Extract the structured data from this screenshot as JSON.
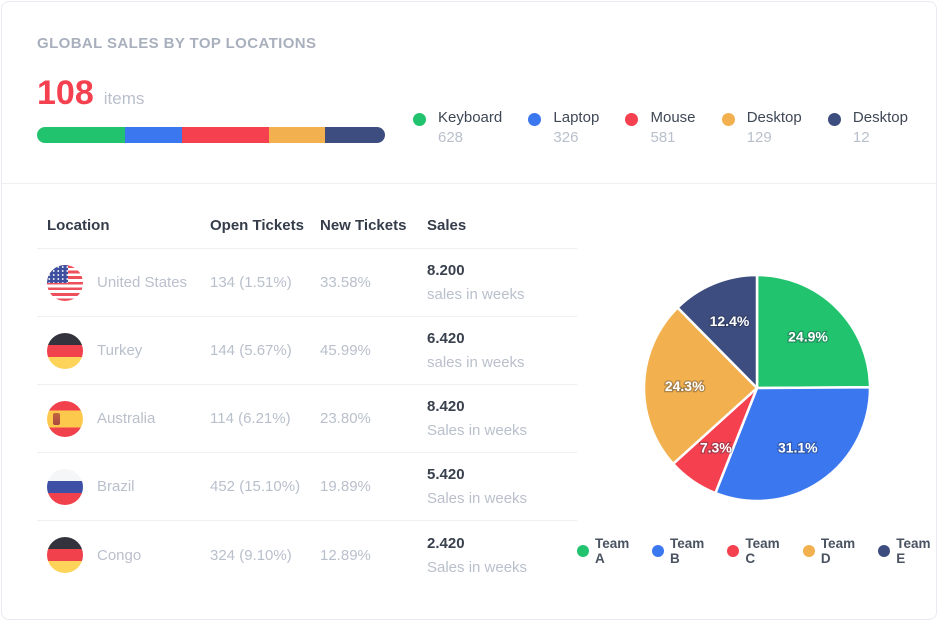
{
  "card": {
    "title": "GLOBAL SALES BY TOP LOCATIONS"
  },
  "summary": {
    "count": "108",
    "count_label": "items",
    "accent_color": "#f5414f"
  },
  "table": {
    "headers": [
      "Location",
      "Open Tickets",
      "New Tickets",
      "Sales"
    ],
    "rows": [
      {
        "location": "United States",
        "flag": "us",
        "open_tickets": "134 (1.51%)",
        "new_tickets": "33.58%",
        "sales": "8.200",
        "sales_sub": "sales in weeks"
      },
      {
        "location": "Turkey",
        "flag": "de",
        "open_tickets": "144 (5.67%)",
        "new_tickets": "45.99%",
        "sales": "6.420",
        "sales_sub": "sales in weeks"
      },
      {
        "location": "Australia",
        "flag": "es",
        "open_tickets": "114 (6.21%)",
        "new_tickets": "23.80%",
        "sales": "8.420",
        "sales_sub": "Sales in weeks"
      },
      {
        "location": "Brazil",
        "flag": "ru",
        "open_tickets": "452 (15.10%)",
        "new_tickets": "19.89%",
        "sales": "5.420",
        "sales_sub": "Sales in weeks"
      },
      {
        "location": "Congo",
        "flag": "de",
        "open_tickets": "324 (9.10%)",
        "new_tickets": "12.89%",
        "sales": "2.420",
        "sales_sub": "Sales in weeks"
      }
    ]
  },
  "chart_data": [
    {
      "type": "pie",
      "labels": [
        "Team A",
        "Team B",
        "Team C",
        "Team D",
        "Team E"
      ],
      "values": [
        24.9,
        31.1,
        7.3,
        24.3,
        12.4
      ],
      "unit": "%",
      "slice_labels": [
        "24.9%",
        "31.1%",
        "7.3%",
        "24.3%",
        "12.4%"
      ],
      "colors": [
        "#22c36f",
        "#3b77ef",
        "#f5414f",
        "#f2b04e",
        "#3e4d7f"
      ],
      "legend_position": "bottom",
      "start_angle_deg": 0,
      "direction": "clockwise"
    },
    {
      "type": "bar",
      "subtype": "stacked-horizontal",
      "title": "108 items",
      "categories": [
        "Keyboard",
        "Laptop",
        "Mouse",
        "Desktop",
        "Desktop"
      ],
      "values": [
        628,
        326,
        581,
        129,
        12
      ],
      "segment_width_pct": [
        25.3,
        16.4,
        25.0,
        16.1,
        17.2
      ],
      "colors": [
        "#22c36f",
        "#3b77ef",
        "#f5414f",
        "#f2b04e",
        "#3e4d7f"
      ]
    }
  ]
}
